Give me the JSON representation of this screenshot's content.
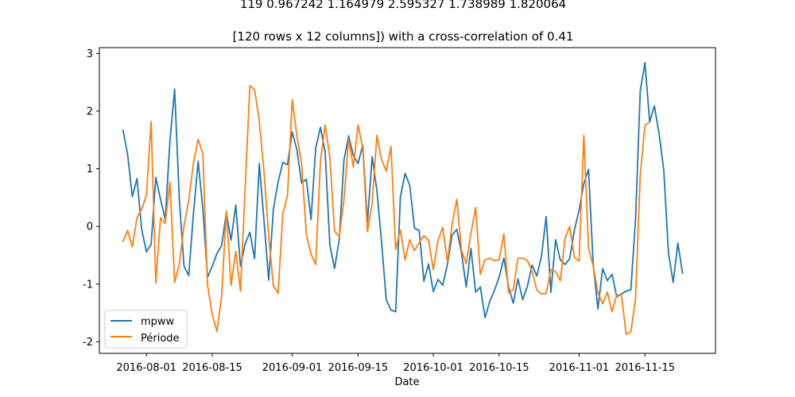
{
  "chart_data": {
    "type": "line",
    "title_lines": [
      "119  0.967242  1.164979  2.595327  1.738989  1.820064",
      "[120 rows x 12 columns]) with a cross-correlation of 0.41"
    ],
    "xlabel": "Date",
    "ylabel": "",
    "x_start": "2016-07-27",
    "x_ticks": [
      "2016-08-01",
      "2016-08-15",
      "2016-09-01",
      "2016-09-15",
      "2016-10-01",
      "2016-10-15",
      "2016-11-01",
      "2016-11-15"
    ],
    "xlim": [
      "2016-07-22",
      "2016-11-30"
    ],
    "ylim": [
      -2.2,
      3.1
    ],
    "y_ticks": [
      -2,
      -1,
      0,
      1,
      2,
      3
    ],
    "grid": false,
    "legend_position": "lower-left",
    "series": [
      {
        "name": "mpww",
        "color": "#1f77b4",
        "values": [
          1.68,
          1.25,
          0.52,
          0.83,
          -0.05,
          -0.44,
          -0.31,
          0.85,
          0.47,
          0.12,
          1.48,
          2.38,
          0.47,
          -0.69,
          -0.85,
          0.22,
          1.13,
          0.31,
          -0.88,
          -0.69,
          -0.47,
          -0.33,
          0.24,
          -0.24,
          0.37,
          -0.69,
          -0.3,
          -0.1,
          -0.56,
          1.09,
          0.1,
          -0.93,
          0.3,
          0.77,
          1.11,
          1.07,
          1.64,
          1.33,
          0.75,
          0.82,
          0.12,
          1.36,
          1.72,
          1.29,
          -0.32,
          -0.73,
          -0.23,
          1.15,
          1.57,
          1.23,
          1.09,
          1.41,
          0.07,
          1.21,
          0.63,
          -0.27,
          -1.27,
          -1.45,
          -1.48,
          0.51,
          0.92,
          0.71,
          -0.03,
          -0.07,
          -0.95,
          -0.65,
          -1.13,
          -0.92,
          -1.02,
          -0.66,
          -0.15,
          -0.05,
          -0.46,
          -1.05,
          -0.38,
          -1.14,
          -1.05,
          -1.58,
          -1.3,
          -1.11,
          -0.88,
          -0.55,
          -1.05,
          -1.33,
          -0.91,
          -1.27,
          -1.04,
          -0.67,
          -0.86,
          -0.51,
          0.17,
          -1.14,
          -0.23,
          -0.58,
          -0.66,
          -0.56,
          -0.06,
          0.28,
          0.74,
          0.99,
          -0.66,
          -1.43,
          -0.73,
          -0.94,
          -0.83,
          -1.22,
          -1.17,
          -1.12,
          -1.1,
          0.12,
          2.35,
          2.84,
          1.81,
          2.09,
          1.61,
          0.98,
          -0.46,
          -0.97,
          -0.29,
          -0.82
        ]
      },
      {
        "name": "Période",
        "color": "#ff7f0e",
        "values": [
          -0.27,
          -0.07,
          -0.35,
          0.15,
          0.3,
          0.54,
          1.82,
          -0.98,
          0.15,
          0.05,
          0.77,
          -0.97,
          -0.65,
          0.01,
          0.45,
          1.1,
          1.51,
          1.26,
          -1.02,
          -1.53,
          -1.82,
          -1.2,
          0.27,
          -1.02,
          -0.43,
          -1.12,
          0.67,
          2.44,
          2.37,
          1.83,
          0.95,
          -0.17,
          -1.03,
          -1.16,
          0.22,
          0.54,
          2.2,
          1.57,
          1.09,
          -0.14,
          -0.48,
          -0.66,
          1.13,
          1.76,
          1.2,
          -0.08,
          -0.18,
          0.46,
          1.52,
          1.03,
          1.76,
          1.36,
          -0.09,
          0.4,
          1.58,
          1.16,
          0.96,
          1.39,
          -0.4,
          -0.06,
          -0.58,
          -0.23,
          -0.42,
          -0.28,
          -0.16,
          -0.24,
          -0.75,
          -0.24,
          -0.02,
          -0.62,
          0.04,
          0.47,
          -0.41,
          -0.65,
          -0.12,
          0.33,
          -0.83,
          -0.58,
          -0.55,
          -0.59,
          -0.58,
          -0.13,
          -1.15,
          -1.1,
          -0.55,
          -0.55,
          -0.59,
          -0.78,
          -1.1,
          -1.17,
          -1.16,
          -0.75,
          -0.78,
          -0.94,
          -0.21,
          0.0,
          -0.54,
          -0.6,
          1.58,
          -0.37,
          -0.69,
          -1.15,
          -1.34,
          -1.14,
          -1.48,
          -1.19,
          -1.18,
          -1.87,
          -1.83,
          -1.25,
          0.89,
          1.75,
          1.81
        ]
      }
    ]
  }
}
